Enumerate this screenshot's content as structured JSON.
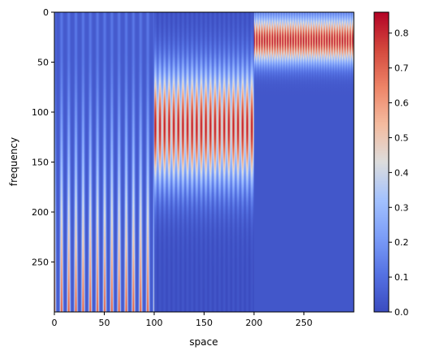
{
  "chart_data": {
    "type": "heatmap",
    "title": "",
    "xlabel": "space",
    "ylabel": "frequency",
    "colormap": "coolwarm",
    "x_range": [
      0,
      300
    ],
    "y_range": [
      0,
      300
    ],
    "y_inverted": true,
    "x_ticks": [
      "0",
      "50",
      "100",
      "150",
      "200",
      "250"
    ],
    "y_ticks": [
      "0",
      "50",
      "100",
      "150",
      "200",
      "250"
    ],
    "colorbar": {
      "range": [
        0.0,
        0.86
      ],
      "ticks": [
        "0.0",
        "0.1",
        "0.2",
        "0.3",
        "0.4",
        "0.5",
        "0.6",
        "0.7",
        "0.8"
      ]
    },
    "segments": [
      {
        "space": [
          0,
          100
        ],
        "stripe_period": 7.2,
        "peak_frequency": 300,
        "peak_value": 0.72,
        "description": "stripes strengthening with frequency"
      },
      {
        "space": [
          100,
          200
        ],
        "stripe_period": 4.6,
        "peak_frequency": 115,
        "peak_value": 0.86
      },
      {
        "space": [
          200,
          300
        ],
        "stripe_period": 2.6,
        "peak_frequency": 28,
        "peak_value": 0.86
      }
    ],
    "colors": {
      "low": "#3b4cc0",
      "mid": "#dddddd",
      "high": "#b40426"
    }
  }
}
